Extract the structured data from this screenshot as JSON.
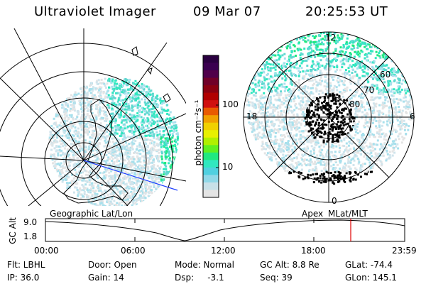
{
  "header": {
    "instrument": "Ultraviolet Imager",
    "date": "09 Mar 07",
    "time": "20:25:53 UT"
  },
  "colorbar": {
    "unit_label": "photon cm⁻²s⁻¹",
    "ticks": [
      "100",
      "10"
    ],
    "colors": [
      "#2a0040",
      "#3a0050",
      "#50004a",
      "#700028",
      "#8a0010",
      "#b00000",
      "#d01010",
      "#e85a00",
      "#f0a000",
      "#f0d000",
      "#e8f000",
      "#b0f000",
      "#60f020",
      "#20e880",
      "#30e8c0",
      "#50d0e0",
      "#90d8e8",
      "#c8e0e8",
      "#e4e4e4"
    ]
  },
  "polar_plot": {
    "labels": {
      "top": "12",
      "bottom": "0",
      "left": "18",
      "right": "6",
      "lat60": "60",
      "lat70": "70",
      "lat80": "80"
    }
  },
  "timeline": {
    "left_label": "Geographic Lat/Lon",
    "right_label": "Apex MLat/MLT",
    "axis_title": "GC Alt",
    "y_ticks": [
      "9.0",
      "1.8"
    ],
    "x_ticks": [
      "00:00",
      "06:00",
      "12:00",
      "18:00",
      "23:59"
    ],
    "marker_color": "#e00000",
    "line_color": "#000000"
  },
  "info": {
    "row1": {
      "flt": "Flt: LBHL",
      "door": "Door: Open",
      "mode": "Mode: Normal",
      "gc_alt": "GC Alt: 8.8 Re",
      "glat": "GLat: -74.4"
    },
    "row2": {
      "ip": "IP: 36.0",
      "gain": "Gain: 14",
      "dsp": "Dsp:     -3.1",
      "seq": "Seq: 39",
      "glon": "GLon: 145.1"
    }
  }
}
